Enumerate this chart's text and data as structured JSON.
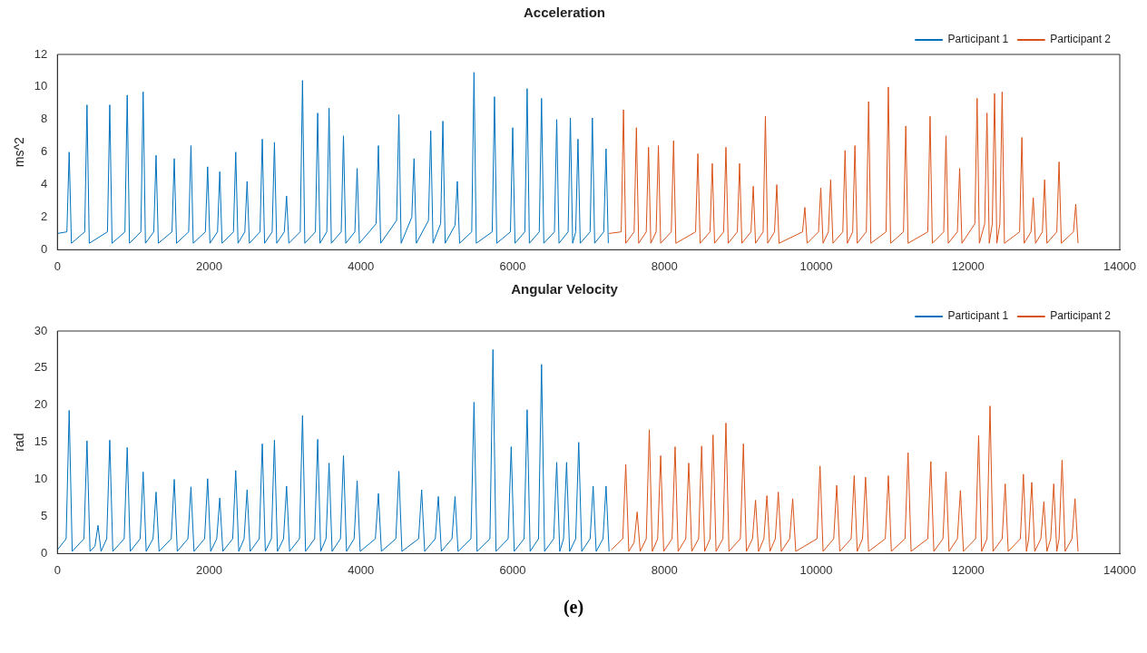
{
  "chart_data": [
    {
      "type": "line",
      "title": "Acceleration",
      "ylabel": "ms^2",
      "xlim": [
        0,
        14000
      ],
      "xticks": [
        0,
        2000,
        4000,
        6000,
        8000,
        10000,
        12000,
        14000
      ],
      "ylim": [
        0,
        12
      ],
      "yticks": [
        0,
        2,
        4,
        6,
        8,
        10,
        12
      ],
      "grid": false,
      "legend": "top right",
      "series": [
        {
          "name": "Participant 1",
          "color": "#0072bd",
          "x": [
            0,
            125,
            155,
            185,
            360,
            390,
            420,
            660,
            690,
            720,
            890,
            920,
            950,
            1100,
            1130,
            1160,
            1270,
            1300,
            1330,
            1510,
            1540,
            1570,
            1730,
            1760,
            1790,
            1950,
            1980,
            2010,
            2110,
            2140,
            2170,
            2320,
            2350,
            2380,
            2470,
            2500,
            2530,
            2670,
            2700,
            2730,
            2830,
            2860,
            2890,
            2990,
            3020,
            3050,
            3200,
            3230,
            3260,
            3400,
            3430,
            3460,
            3550,
            3580,
            3610,
            3740,
            3770,
            3800,
            3920,
            3950,
            3980,
            4200,
            4230,
            4260,
            4470,
            4500,
            4530,
            4670,
            4700,
            4730,
            4890,
            4920,
            4950,
            5050,
            5080,
            5110,
            5240,
            5270,
            5300,
            5460,
            5490,
            5520,
            5730,
            5760,
            5790,
            5970,
            6000,
            6030,
            6160,
            6190,
            6220,
            6350,
            6380,
            6410,
            6550,
            6580,
            6610,
            6730,
            6760,
            6790,
            6830,
            6860,
            6890,
            7020,
            7050,
            7080,
            7200,
            7230,
            7260
          ],
          "values": [
            1.0,
            1.1,
            6.0,
            0.4,
            1.1,
            8.9,
            0.4,
            1.1,
            8.9,
            0.4,
            1.1,
            9.5,
            0.4,
            1.1,
            9.7,
            0.4,
            1.1,
            5.8,
            0.4,
            1.1,
            5.6,
            0.4,
            1.1,
            6.4,
            0.4,
            1.1,
            5.1,
            0.4,
            1.1,
            4.8,
            0.4,
            1.1,
            6.0,
            0.4,
            1.1,
            4.2,
            0.4,
            1.1,
            6.8,
            0.4,
            1.1,
            6.6,
            0.4,
            1.1,
            3.3,
            0.4,
            1.1,
            10.4,
            0.4,
            1.1,
            8.4,
            0.4,
            1.1,
            8.7,
            0.4,
            1.1,
            7.0,
            0.4,
            1.1,
            5.0,
            0.4,
            1.6,
            6.4,
            0.4,
            1.8,
            8.3,
            0.4,
            2.0,
            5.6,
            0.4,
            1.8,
            7.3,
            0.4,
            1.6,
            7.9,
            0.4,
            1.5,
            4.2,
            0.4,
            1.1,
            10.9,
            0.4,
            1.1,
            9.4,
            0.4,
            1.1,
            7.5,
            0.4,
            1.1,
            9.9,
            0.4,
            1.1,
            9.3,
            0.4,
            1.1,
            8.0,
            0.4,
            1.1,
            8.1,
            0.4,
            1.1,
            6.8,
            0.4,
            1.1,
            8.1,
            0.4,
            1.1,
            6.2,
            0.4
          ]
        },
        {
          "name": "Participant 2",
          "color": "#d95319",
          "x": [
            7270,
            7430,
            7460,
            7490,
            7600,
            7630,
            7660,
            7760,
            7790,
            7820,
            7890,
            7920,
            7950,
            8090,
            8120,
            8150,
            8410,
            8440,
            8470,
            8600,
            8630,
            8660,
            8780,
            8810,
            8840,
            8960,
            8990,
            9020,
            9140,
            9170,
            9200,
            9300,
            9330,
            9360,
            9450,
            9480,
            9510,
            9820,
            9850,
            9880,
            10030,
            10060,
            10090,
            10160,
            10190,
            10220,
            10350,
            10380,
            10410,
            10480,
            10510,
            10540,
            10660,
            10690,
            10720,
            10920,
            10950,
            10980,
            11150,
            11180,
            11210,
            11470,
            11500,
            11530,
            11680,
            11710,
            11740,
            11860,
            11890,
            11920,
            12090,
            12120,
            12150,
            12220,
            12250,
            12280,
            12320,
            12350,
            12380,
            12420,
            12450,
            12480,
            12680,
            12710,
            12740,
            12830,
            12860,
            12890,
            12980,
            13010,
            13040,
            13170,
            13200,
            13230,
            13390,
            13420,
            13450
          ],
          "values": [
            1.0,
            1.1,
            8.6,
            0.4,
            1.1,
            7.5,
            0.4,
            1.1,
            6.3,
            0.4,
            1.1,
            6.4,
            0.4,
            1.1,
            6.7,
            0.4,
            1.1,
            5.9,
            0.4,
            1.1,
            5.3,
            0.4,
            1.1,
            6.3,
            0.4,
            1.1,
            5.3,
            0.4,
            1.1,
            3.9,
            0.4,
            1.1,
            8.2,
            0.4,
            1.1,
            4.0,
            0.4,
            1.1,
            2.6,
            0.4,
            1.1,
            3.8,
            0.4,
            1.1,
            4.3,
            0.4,
            1.1,
            6.1,
            0.4,
            1.1,
            6.4,
            0.4,
            1.1,
            9.1,
            0.4,
            1.1,
            10.0,
            0.4,
            1.1,
            7.6,
            0.4,
            1.1,
            8.2,
            0.4,
            1.1,
            7.0,
            0.4,
            1.1,
            5.0,
            0.4,
            1.6,
            9.3,
            0.4,
            1.6,
            8.4,
            0.4,
            1.6,
            9.6,
            0.4,
            1.6,
            9.7,
            0.4,
            1.1,
            6.9,
            0.4,
            1.1,
            3.2,
            0.4,
            1.1,
            4.3,
            0.4,
            1.1,
            5.4,
            0.4,
            1.1,
            2.8,
            0.4
          ]
        }
      ]
    },
    {
      "type": "line",
      "title": "Angular Velocity",
      "ylabel": "rad",
      "xlim": [
        0,
        14000
      ],
      "xticks": [
        0,
        2000,
        4000,
        6000,
        8000,
        10000,
        12000,
        14000
      ],
      "ylim": [
        0,
        30
      ],
      "yticks": [
        0,
        5,
        10,
        15,
        20,
        25,
        30
      ],
      "grid": false,
      "legend": "top right",
      "annotations": [
        "(e)"
      ],
      "series": [
        {
          "name": "Participant 1",
          "color": "#0072bd",
          "x": [
            0,
            115,
            155,
            195,
            350,
            390,
            430,
            495,
            535,
            575,
            650,
            690,
            730,
            880,
            920,
            960,
            1090,
            1130,
            1170,
            1260,
            1300,
            1340,
            1500,
            1540,
            1580,
            1720,
            1760,
            1800,
            1940,
            1980,
            2020,
            2100,
            2140,
            2180,
            2310,
            2350,
            2390,
            2460,
            2500,
            2540,
            2660,
            2700,
            2740,
            2820,
            2860,
            2900,
            2980,
            3020,
            3060,
            3190,
            3230,
            3270,
            3390,
            3430,
            3470,
            3540,
            3580,
            3620,
            3730,
            3770,
            3810,
            3910,
            3950,
            3990,
            4190,
            4230,
            4270,
            4460,
            4500,
            4540,
            4760,
            4800,
            4840,
            4980,
            5020,
            5060,
            5200,
            5240,
            5280,
            5450,
            5490,
            5530,
            5700,
            5740,
            5780,
            5940,
            5980,
            6020,
            6150,
            6190,
            6230,
            6340,
            6380,
            6420,
            6540,
            6580,
            6620,
            6670,
            6710,
            6750,
            6830,
            6870,
            6910,
            7020,
            7060,
            7100,
            7190,
            7230,
            7270
          ],
          "values": [
            0.5,
            2.0,
            19.3,
            0.3,
            2.0,
            15.2,
            0.3,
            1.0,
            3.8,
            0.3,
            2.0,
            15.3,
            0.3,
            2.0,
            14.3,
            0.3,
            2.0,
            11.0,
            0.3,
            2.0,
            8.3,
            0.3,
            2.0,
            10.0,
            0.3,
            2.0,
            9.0,
            0.3,
            2.0,
            10.1,
            0.3,
            2.0,
            7.5,
            0.3,
            2.0,
            11.2,
            0.3,
            2.0,
            8.6,
            0.3,
            2.0,
            14.8,
            0.3,
            2.0,
            15.3,
            0.3,
            2.0,
            9.1,
            0.3,
            2.0,
            18.6,
            0.3,
            2.0,
            15.4,
            0.3,
            2.0,
            12.2,
            0.3,
            2.0,
            13.2,
            0.3,
            2.0,
            9.8,
            0.3,
            2.0,
            8.1,
            0.3,
            2.0,
            11.1,
            0.3,
            2.0,
            8.6,
            0.3,
            2.0,
            7.7,
            0.3,
            2.0,
            7.7,
            0.3,
            2.0,
            20.4,
            0.3,
            2.0,
            27.5,
            0.3,
            2.0,
            14.4,
            0.3,
            2.0,
            19.4,
            0.3,
            2.0,
            25.5,
            0.3,
            2.0,
            12.3,
            0.3,
            2.0,
            12.3,
            0.3,
            2.0,
            15.0,
            0.3,
            2.0,
            9.1,
            0.3,
            2.0,
            9.1,
            0.3
          ]
        },
        {
          "name": "Participant 2",
          "color": "#d95319",
          "x": [
            7300,
            7450,
            7490,
            7530,
            7600,
            7640,
            7680,
            7760,
            7800,
            7840,
            7910,
            7950,
            7990,
            8100,
            8140,
            8180,
            8280,
            8320,
            8360,
            8450,
            8490,
            8530,
            8600,
            8640,
            8680,
            8770,
            8810,
            8850,
            9000,
            9040,
            9080,
            9160,
            9200,
            9240,
            9310,
            9350,
            9390,
            9460,
            9500,
            9540,
            9650,
            9690,
            9730,
            10010,
            10050,
            10090,
            10230,
            10270,
            10310,
            10460,
            10500,
            10540,
            10610,
            10650,
            10690,
            10910,
            10950,
            10990,
            11170,
            11210,
            11250,
            11470,
            11510,
            11550,
            11670,
            11710,
            11750,
            11860,
            11900,
            11940,
            12100,
            12140,
            12180,
            12250,
            12290,
            12330,
            12450,
            12490,
            12530,
            12690,
            12730,
            12770,
            12800,
            12840,
            12880,
            12960,
            13000,
            13040,
            13090,
            13130,
            13170,
            13200,
            13240,
            13280,
            13370,
            13410,
            13450
          ],
          "values": [
            0.5,
            2.0,
            12.0,
            0.3,
            1.5,
            5.6,
            0.3,
            2.0,
            16.7,
            0.3,
            2.0,
            13.2,
            0.3,
            2.0,
            14.4,
            0.3,
            2.0,
            12.2,
            0.3,
            2.0,
            14.5,
            0.3,
            2.0,
            16.0,
            0.3,
            2.0,
            17.6,
            0.3,
            2.0,
            14.8,
            0.3,
            2.0,
            7.2,
            0.3,
            2.0,
            7.8,
            0.3,
            2.0,
            8.3,
            0.3,
            2.0,
            7.4,
            0.3,
            2.0,
            11.8,
            0.3,
            2.0,
            9.2,
            0.3,
            2.0,
            10.5,
            0.3,
            2.0,
            10.3,
            0.3,
            2.0,
            10.5,
            0.3,
            2.0,
            13.6,
            0.3,
            2.0,
            12.4,
            0.3,
            2.0,
            11.0,
            0.3,
            2.0,
            8.5,
            0.3,
            2.0,
            15.9,
            0.3,
            2.0,
            19.9,
            0.3,
            2.0,
            9.4,
            0.3,
            2.0,
            10.7,
            0.3,
            2.0,
            9.6,
            0.3,
            2.0,
            7.0,
            0.3,
            2.0,
            9.4,
            0.3,
            2.0,
            12.6,
            0.3,
            2.0,
            7.4,
            0.3
          ]
        }
      ]
    }
  ]
}
